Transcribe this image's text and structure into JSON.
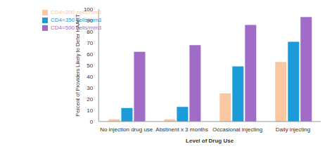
{
  "chart_data": {
    "type": "bar",
    "categories": [
      "No injection drug use",
      "Abstinent x 3 months",
      "Occasional injecting",
      "Daily injecting"
    ],
    "series": [
      {
        "name": "CD4=200 cells/mm3",
        "color": "#f9c8a2",
        "values": [
          2,
          2,
          25,
          53
        ]
      },
      {
        "name": "CD4=350 cells/mm3",
        "color": "#1b9bd7",
        "values": [
          12,
          13,
          49,
          71
        ]
      },
      {
        "name": "CD4=500 cells/mm3",
        "color": "#a06cc8",
        "values": [
          62,
          68,
          86,
          93
        ]
      }
    ],
    "x_label": "Level of Drug Use",
    "y_label": "Percent of Providers Likely to Defer HAART",
    "ylim": [
      0,
      100
    ],
    "yticks": [
      0,
      10,
      20,
      30,
      40,
      50,
      60,
      70,
      80,
      90,
      100
    ],
    "grid": false,
    "legend": "upper left"
  }
}
